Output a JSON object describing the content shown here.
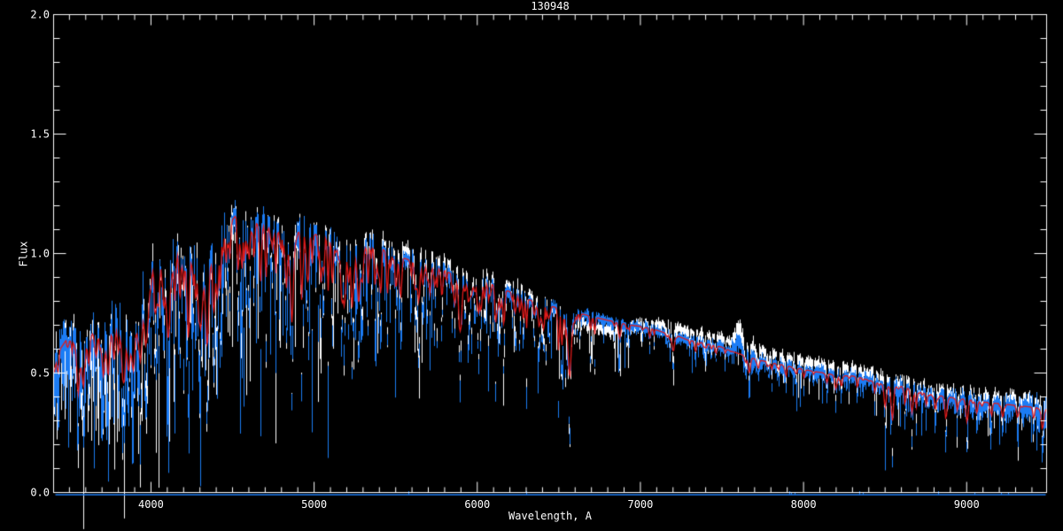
{
  "chart_data": {
    "type": "line",
    "title": "130948",
    "xlabel": "Wavelength, A",
    "ylabel": "Flux",
    "xlim": [
      3403,
      9490
    ],
    "ylim": [
      0.0,
      2.0
    ],
    "x_major_ticks": [
      4000,
      5000,
      6000,
      7000,
      8000,
      9000
    ],
    "x_tick_labels": [
      "4000",
      "5000",
      "6000",
      "7000",
      "8000",
      "9000"
    ],
    "x_minor_step": 100,
    "y_major_ticks": [
      0.0,
      0.5,
      1.0,
      1.5,
      2.0
    ],
    "y_tick_labels": [
      "0.0",
      "0.5",
      "1.0",
      "1.5",
      "2.0"
    ],
    "y_minor_step": 0.1,
    "grid": false,
    "legend": null,
    "colors": {
      "background": "#000000",
      "axes": "#ffffff",
      "observed": "#1b7cf5",
      "comparison": "#ffffff",
      "model": "#e01b1b"
    },
    "series": [
      {
        "name": "comparison-spectrum",
        "color_key": "comparison",
        "style": "noisy-line"
      },
      {
        "name": "observed-spectrum",
        "color_key": "observed",
        "style": "noisy-line"
      },
      {
        "name": "model-fit",
        "color_key": "model",
        "style": "smooth-line"
      },
      {
        "name": "zero-level",
        "color_key": "observed",
        "style": "flat-line",
        "flux": 0.0
      }
    ],
    "model_continuum": {
      "wavelength": [
        3403,
        3440,
        3480,
        3520,
        3560,
        3600,
        3640,
        3680,
        3710,
        3740,
        3780,
        3810,
        3835,
        3870,
        3900,
        3935,
        3970,
        4005,
        4040,
        4070,
        4101,
        4140,
        4180,
        4226,
        4260,
        4300,
        4340,
        4380,
        4420,
        4470,
        4530,
        4580,
        4630,
        4680,
        4730,
        4780,
        4830,
        4861,
        4900,
        4950,
        5000,
        5050,
        5100,
        5170,
        5230,
        5270,
        5330,
        5400,
        5450,
        5500,
        5550,
        5600,
        5650,
        5700,
        5750,
        5800,
        5850,
        5893,
        5950,
        6000,
        6050,
        6100,
        6150,
        6200,
        6250,
        6300,
        6350,
        6400,
        6450,
        6500,
        6563,
        6620,
        6680,
        6740,
        6800,
        6870,
        6940,
        7000,
        7070,
        7140,
        7210,
        7280,
        7350,
        7420,
        7490,
        7560,
        7650,
        7720,
        7790,
        7860,
        7930,
        8000,
        8070,
        8140,
        8210,
        8280,
        8350,
        8420,
        8490,
        8542,
        8600,
        8662,
        8730,
        8800,
        8870,
        8940,
        9010,
        9080,
        9150,
        9220,
        9290,
        9360,
        9430,
        9490
      ],
      "flux": [
        0.52,
        0.6,
        0.64,
        0.63,
        0.55,
        0.62,
        0.7,
        0.67,
        0.61,
        0.66,
        0.72,
        0.75,
        0.67,
        0.61,
        0.72,
        0.8,
        0.9,
        0.96,
        1.0,
        0.96,
        0.84,
        1.0,
        1.02,
        0.96,
        1.0,
        0.92,
        0.89,
        1.0,
        1.06,
        1.12,
        1.17,
        1.16,
        1.13,
        1.12,
        1.11,
        1.09,
        1.05,
        0.99,
        1.09,
        1.1,
        1.08,
        1.08,
        1.06,
        0.98,
        1.04,
        1.0,
        1.04,
        1.03,
        1.0,
        1.0,
        0.98,
        0.97,
        0.96,
        0.95,
        0.94,
        0.93,
        0.91,
        0.88,
        0.9,
        0.89,
        0.88,
        0.87,
        0.85,
        0.84,
        0.83,
        0.81,
        0.8,
        0.79,
        0.78,
        0.77,
        0.7,
        0.75,
        0.74,
        0.73,
        0.72,
        0.71,
        0.7,
        0.695,
        0.685,
        0.67,
        0.66,
        0.64,
        0.63,
        0.62,
        0.61,
        0.59,
        0.57,
        0.555,
        0.545,
        0.535,
        0.525,
        0.515,
        0.505,
        0.5,
        0.485,
        0.49,
        0.48,
        0.465,
        0.45,
        0.44,
        0.445,
        0.43,
        0.42,
        0.41,
        0.4,
        0.395,
        0.39,
        0.38,
        0.375,
        0.37,
        0.365,
        0.36,
        0.355,
        0.35
      ]
    },
    "absorption_lines": [
      [
        3550,
        0.45,
        4
      ],
      [
        3581,
        0.4,
        5
      ],
      [
        3618,
        0.3,
        4
      ],
      [
        3662,
        0.35,
        4
      ],
      [
        3705,
        0.4,
        4
      ],
      [
        3735,
        0.5,
        5
      ],
      [
        3770,
        0.45,
        4
      ],
      [
        3798,
        0.45,
        4
      ],
      [
        3820,
        0.45,
        5
      ],
      [
        3835,
        0.5,
        4
      ],
      [
        3860,
        0.4,
        4
      ],
      [
        3889,
        0.55,
        5
      ],
      [
        3933,
        0.68,
        6
      ],
      [
        3968,
        0.62,
        6
      ],
      [
        4030,
        0.45,
        4
      ],
      [
        4045,
        0.4,
        3
      ],
      [
        4077,
        0.35,
        3
      ],
      [
        4101,
        0.5,
        5
      ],
      [
        4144,
        0.35,
        4
      ],
      [
        4172,
        0.3,
        3
      ],
      [
        4226,
        0.5,
        4
      ],
      [
        4271,
        0.4,
        3
      ],
      [
        4300,
        0.45,
        6
      ],
      [
        4340,
        0.5,
        5
      ],
      [
        4383,
        0.5,
        4
      ],
      [
        4405,
        0.4,
        3
      ],
      [
        4458,
        0.3,
        3
      ],
      [
        4481,
        0.3,
        3
      ],
      [
        4531,
        0.35,
        3
      ],
      [
        4554,
        0.3,
        3
      ],
      [
        4584,
        0.3,
        3
      ],
      [
        4629,
        0.3,
        3
      ],
      [
        4668,
        0.35,
        4
      ],
      [
        4703,
        0.3,
        3
      ],
      [
        4762,
        0.25,
        3
      ],
      [
        4824,
        0.25,
        3
      ],
      [
        4861,
        0.57,
        5
      ],
      [
        4920,
        0.35,
        3
      ],
      [
        4957,
        0.35,
        3
      ],
      [
        5041,
        0.3,
        3
      ],
      [
        5083,
        0.3,
        3
      ],
      [
        5110,
        0.3,
        3
      ],
      [
        5167,
        0.4,
        4
      ],
      [
        5183,
        0.45,
        4
      ],
      [
        5227,
        0.35,
        3
      ],
      [
        5270,
        0.45,
        5
      ],
      [
        5328,
        0.35,
        3
      ],
      [
        5371,
        0.35,
        3
      ],
      [
        5405,
        0.35,
        3
      ],
      [
        5446,
        0.35,
        3
      ],
      [
        5497,
        0.3,
        3
      ],
      [
        5528,
        0.3,
        3
      ],
      [
        5616,
        0.25,
        3
      ],
      [
        5709,
        0.25,
        3
      ],
      [
        5782,
        0.2,
        3
      ],
      [
        5860,
        0.25,
        3
      ],
      [
        5893,
        0.5,
        5
      ],
      [
        6024,
        0.2,
        3
      ],
      [
        6122,
        0.25,
        3
      ],
      [
        6162,
        0.25,
        3
      ],
      [
        6280,
        0.25,
        3
      ],
      [
        6400,
        0.25,
        3
      ],
      [
        6495,
        0.25,
        3
      ],
      [
        6563,
        0.58,
        6
      ],
      [
        6717,
        0.15,
        3
      ],
      [
        6870,
        0.2,
        4
      ],
      [
        7055,
        0.12,
        3
      ],
      [
        7200,
        0.2,
        4
      ],
      [
        7335,
        0.15,
        3
      ],
      [
        7460,
        0.12,
        3
      ],
      [
        7665,
        0.25,
        4
      ],
      [
        7720,
        0.15,
        3
      ],
      [
        7890,
        0.15,
        3
      ],
      [
        8000,
        0.15,
        3
      ],
      [
        8140,
        0.15,
        3
      ],
      [
        8195,
        0.25,
        4
      ],
      [
        8230,
        0.2,
        3
      ],
      [
        8327,
        0.2,
        3
      ],
      [
        8434,
        0.2,
        3
      ],
      [
        8498,
        0.45,
        4
      ],
      [
        8542,
        0.65,
        4
      ],
      [
        8620,
        0.35,
        3
      ],
      [
        8662,
        0.5,
        4
      ],
      [
        8688,
        0.3,
        3
      ],
      [
        8750,
        0.25,
        3
      ],
      [
        8806,
        0.35,
        3
      ],
      [
        8870,
        0.5,
        4
      ],
      [
        8940,
        0.3,
        3
      ],
      [
        9000,
        0.5,
        4
      ],
      [
        9060,
        0.3,
        3
      ],
      [
        9150,
        0.3,
        3
      ],
      [
        9218,
        0.35,
        3
      ],
      [
        9310,
        0.3,
        4
      ],
      [
        9408,
        0.3,
        3
      ],
      [
        9462,
        0.55,
        4
      ]
    ],
    "emission_bump": {
      "wavelength": 7600,
      "height": 0.06,
      "sigma": 18
    },
    "noise_profile": {
      "wavelength": [
        3400,
        4000,
        4500,
        5000,
        5500,
        6000,
        6500,
        7000,
        7600,
        8200,
        8800,
        9490
      ],
      "amplitude": [
        0.1,
        0.09,
        0.07,
        0.05,
        0.04,
        0.03,
        0.028,
        0.025,
        0.025,
        0.03,
        0.035,
        0.05
      ]
    },
    "spike_probability_profile": {
      "wavelength": [
        3400,
        4000,
        4600,
        5200,
        5800,
        6300,
        6800,
        7400,
        8000,
        8600,
        9490
      ],
      "probability": [
        0.3,
        0.3,
        0.25,
        0.18,
        0.12,
        0.1,
        0.06,
        0.06,
        0.1,
        0.12,
        0.15
      ]
    },
    "spike_depth_profile": {
      "wavelength": [
        3400,
        4500,
        5500,
        6500,
        7500,
        8500,
        9490
      ],
      "max_depth": [
        0.5,
        0.45,
        0.35,
        0.25,
        0.2,
        0.3,
        0.35
      ]
    },
    "comparison_offset": {
      "wavelength": [
        3400,
        5000,
        5300,
        6000,
        6400,
        6550,
        6800,
        7000,
        7150,
        7800,
        8200,
        8800,
        9490
      ],
      "offset": [
        0.0,
        0.005,
        0.03,
        0.035,
        0.02,
        -0.03,
        -0.04,
        0.01,
        0.035,
        0.04,
        0.03,
        0.02,
        0.02
      ]
    },
    "zero_line": {
      "flux": 0.0
    },
    "sky_blips": [
      5577,
      6300,
      7913,
      8344,
      8827
    ]
  }
}
